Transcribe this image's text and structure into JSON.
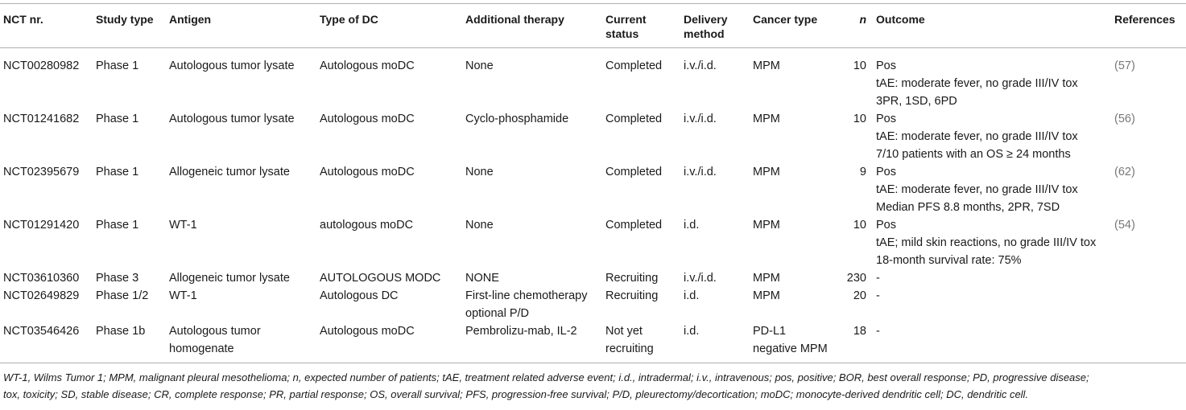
{
  "table": {
    "headers": {
      "nct": "NCT nr.",
      "study_type": "Study type",
      "antigen": "Antigen",
      "dc_type": "Type of DC",
      "additional_therapy": "Additional therapy",
      "status_1": "Current",
      "status_2": "status",
      "delivery_1": "Delivery",
      "delivery_2": "method",
      "cancer_type": "Cancer type",
      "n": "n",
      "outcome": "Outcome",
      "references": "References"
    },
    "rows": [
      {
        "nct": "NCT00280982",
        "study_type": "Phase 1",
        "antigen": [
          "Autologous tumor lysate"
        ],
        "dc_type": "Autologous moDC",
        "therapy": [
          "None"
        ],
        "status": [
          "Completed"
        ],
        "delivery": "i.v./i.d.",
        "cancer": [
          "MPM"
        ],
        "n": "10",
        "outcome": [
          "Pos",
          "tAE: moderate fever, no grade III/IV tox",
          "3PR, 1SD, 6PD"
        ],
        "ref": "(57)"
      },
      {
        "nct": "NCT01241682",
        "study_type": "Phase 1",
        "antigen": [
          "Autologous tumor lysate"
        ],
        "dc_type": "Autologous moDC",
        "therapy": [
          "Cyclo-phosphamide"
        ],
        "status": [
          "Completed"
        ],
        "delivery": "i.v./i.d.",
        "cancer": [
          "MPM"
        ],
        "n": "10",
        "outcome": [
          "Pos",
          "tAE: moderate fever, no grade III/IV tox",
          "7/10 patients with an OS ≥ 24 months"
        ],
        "ref": "(56)"
      },
      {
        "nct": "NCT02395679",
        "study_type": "Phase 1",
        "antigen": [
          "Allogeneic tumor lysate"
        ],
        "dc_type": "Autologous moDC",
        "therapy": [
          "None"
        ],
        "status": [
          "Completed"
        ],
        "delivery": "i.v./i.d.",
        "cancer": [
          "MPM"
        ],
        "n": "9",
        "outcome": [
          "Pos",
          "tAE: moderate fever, no grade III/IV tox",
          "Median PFS 8.8 months, 2PR, 7SD"
        ],
        "ref": "(62)"
      },
      {
        "nct": "NCT01291420",
        "study_type": "Phase 1",
        "antigen": [
          "WT-1"
        ],
        "dc_type": "autologous moDC",
        "therapy": [
          "None"
        ],
        "status": [
          "Completed"
        ],
        "delivery": "i.d.",
        "cancer": [
          "MPM"
        ],
        "n": "10",
        "outcome": [
          "Pos",
          "tAE; mild skin reactions, no grade III/IV tox",
          "18-month survival rate: 75%"
        ],
        "ref": "(54)"
      },
      {
        "nct": "NCT03610360",
        "study_type": "Phase 3",
        "antigen": [
          "Allogeneic tumor lysate"
        ],
        "dc_type": "AUTOLOGOUS MODC",
        "therapy": [
          "NONE"
        ],
        "status": [
          "Recruiting"
        ],
        "delivery": "i.v./i.d.",
        "cancer": [
          "MPM"
        ],
        "n": "230",
        "outcome": [
          "-"
        ],
        "ref": ""
      },
      {
        "nct": "NCT02649829",
        "study_type": "Phase 1/2",
        "antigen": [
          "WT-1"
        ],
        "dc_type": "Autologous DC",
        "therapy": [
          "First-line chemotherapy",
          "optional P/D"
        ],
        "status": [
          "Recruiting"
        ],
        "delivery": "i.d.",
        "cancer": [
          "MPM"
        ],
        "n": "20",
        "outcome": [
          "-"
        ],
        "ref": ""
      },
      {
        "nct": "NCT03546426",
        "study_type": "Phase 1b",
        "antigen": [
          "Autologous tumor",
          "homogenate"
        ],
        "dc_type": "Autologous moDC",
        "therapy": [
          "Pembrolizu-mab, IL-2"
        ],
        "status": [
          "Not yet",
          "recruiting"
        ],
        "delivery": "i.d.",
        "cancer": [
          "PD-L1",
          "negative MPM"
        ],
        "n": "18",
        "outcome": [
          "-"
        ],
        "ref": ""
      }
    ]
  },
  "footnote": {
    "line1": "WT-1, Wilms Tumor 1; MPM, malignant pleural mesothelioma; n, expected number of patients; tAE, treatment related adverse event; i.d., intradermal; i.v., intravenous; pos, positive; BOR, best overall response; PD, progressive disease;",
    "line2": "tox, toxicity; SD, stable disease; CR, complete response; PR, partial response; OS, overall survival; PFS, progression-free survival; P/D, pleurectomy/decortication; moDC; monocyte-derived dendritic cell; DC, dendritic cell."
  }
}
